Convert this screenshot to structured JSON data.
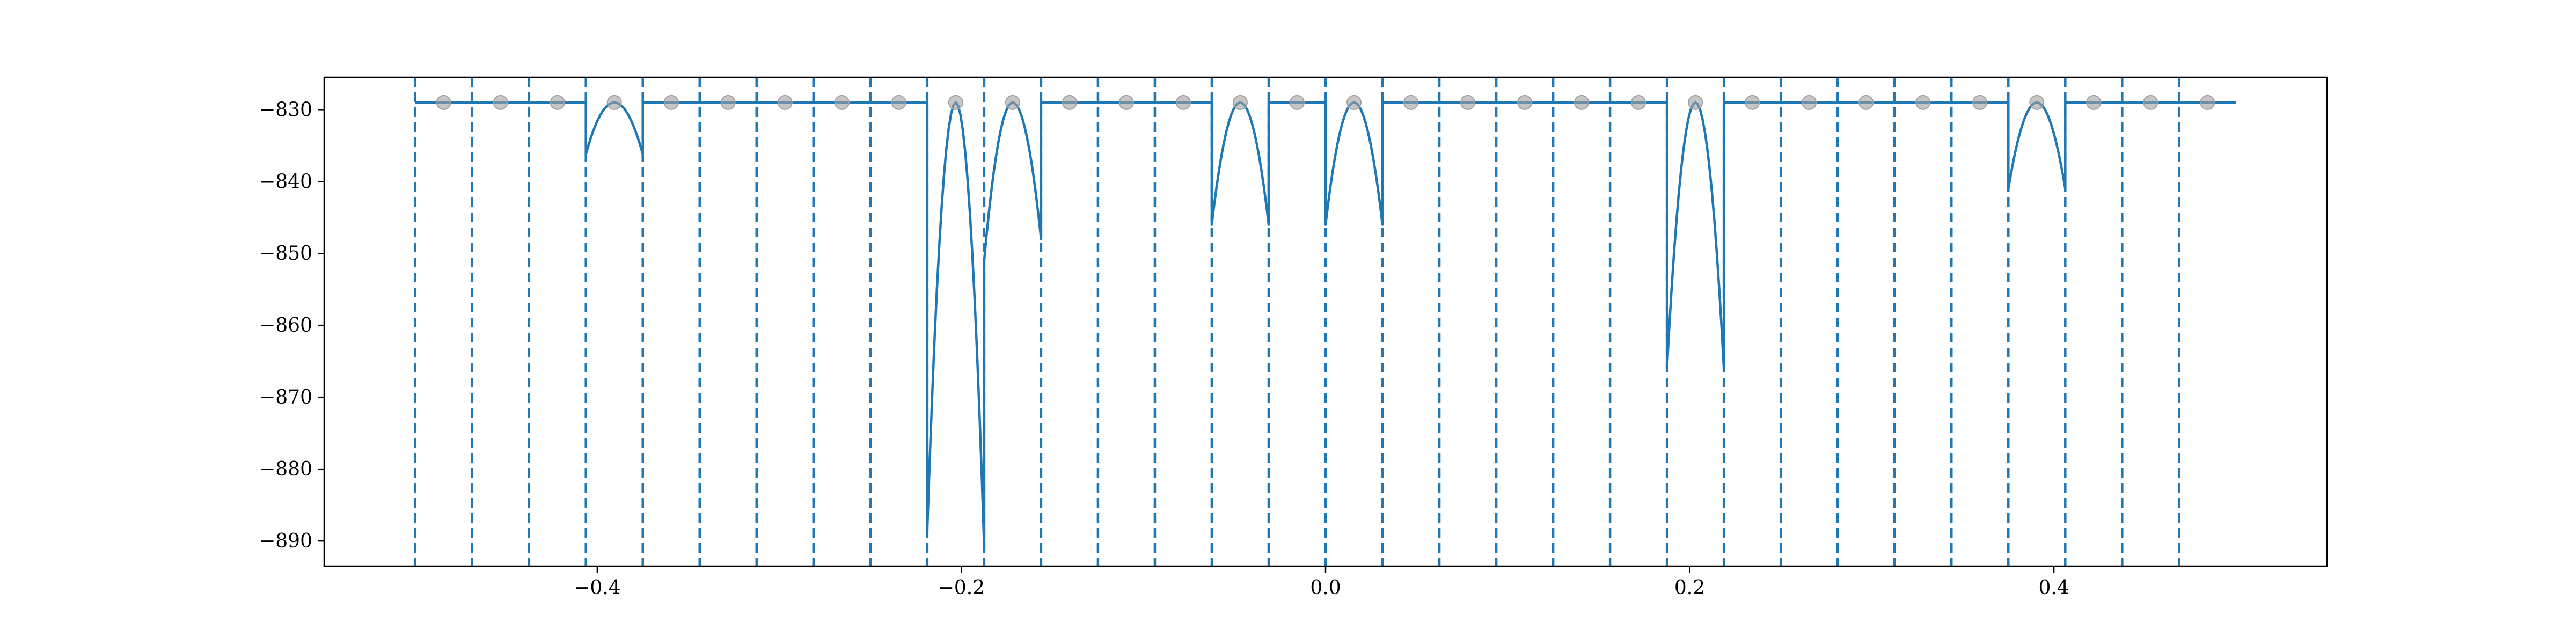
{
  "chart_data": {
    "type": "line",
    "title": "",
    "xlabel": "",
    "ylabel": "",
    "xlim": [
      -0.55,
      0.55
    ],
    "ylim": [
      -893.5,
      -825.5
    ],
    "grid": false,
    "legend": "none",
    "colors": {
      "line": "#1f77b4",
      "points": "#a0a0a0",
      "axes": "#000000"
    },
    "x_ticks": [
      -0.4,
      -0.2,
      0.0,
      0.2,
      0.4
    ],
    "x_tick_labels": [
      "−0.4",
      "−0.2",
      "0.0",
      "0.2",
      "0.4"
    ],
    "y_ticks": [
      -830,
      -840,
      -850,
      -860,
      -870,
      -880,
      -890
    ],
    "y_tick_labels": [
      "−830",
      "−840",
      "−850",
      "−860",
      "−870",
      "−880",
      "−890"
    ],
    "boundaries": [
      -0.5,
      -0.46875,
      -0.4375,
      -0.40625,
      -0.375,
      -0.34375,
      -0.3125,
      -0.28125,
      -0.25,
      -0.21875,
      -0.1875,
      -0.15625,
      -0.125,
      -0.09375,
      -0.0625,
      -0.03125,
      0.0,
      0.03125,
      0.0625,
      0.09375,
      0.125,
      0.15625,
      0.1875,
      0.21875,
      0.25,
      0.28125,
      0.3125,
      0.34375,
      0.375,
      0.40625,
      0.4375,
      0.46875
    ],
    "points": {
      "x": [
        -0.484375,
        -0.453125,
        -0.421875,
        -0.390625,
        -0.359375,
        -0.328125,
        -0.296875,
        -0.265625,
        -0.234375,
        -0.203125,
        -0.171875,
        -0.140625,
        -0.109375,
        -0.078125,
        -0.046875,
        -0.015625,
        0.015625,
        0.046875,
        0.078125,
        0.109375,
        0.140625,
        0.171875,
        0.203125,
        0.234375,
        0.265625,
        0.296875,
        0.328125,
        0.359375,
        0.390625,
        0.421875,
        0.453125,
        0.484375
      ],
      "y": -829
    },
    "segments": [
      {
        "x0": -0.5,
        "x1": -0.46875,
        "center": -0.484375,
        "edge_value": -829,
        "peak": -829
      },
      {
        "x0": -0.46875,
        "x1": -0.4375,
        "center": -0.453125,
        "edge_value": -829,
        "peak": -829
      },
      {
        "x0": -0.4375,
        "x1": -0.40625,
        "center": -0.421875,
        "edge_value": -829,
        "peak": -829
      },
      {
        "x0": -0.40625,
        "x1": -0.375,
        "center": -0.390625,
        "edge_value": -836.2,
        "peak": -829
      },
      {
        "x0": -0.375,
        "x1": -0.34375,
        "center": -0.359375,
        "edge_value": -829,
        "peak": -829
      },
      {
        "x0": -0.34375,
        "x1": -0.3125,
        "center": -0.328125,
        "edge_value": -829,
        "peak": -829
      },
      {
        "x0": -0.3125,
        "x1": -0.28125,
        "center": -0.296875,
        "edge_value": -829,
        "peak": -829
      },
      {
        "x0": -0.28125,
        "x1": -0.25,
        "center": -0.265625,
        "edge_value": -829,
        "peak": -829
      },
      {
        "x0": -0.25,
        "x1": -0.21875,
        "center": -0.234375,
        "edge_value": -829,
        "peak": -829
      },
      {
        "x0": -0.21875,
        "x1": -0.1875,
        "center": -0.203125,
        "edge_value": -888.5,
        "edge_value_right": -890.9,
        "peak": -829
      },
      {
        "x0": -0.1875,
        "x1": -0.15625,
        "center": -0.171875,
        "edge_value": -851.0,
        "edge_value_right": -848.0,
        "peak": -829
      },
      {
        "x0": -0.15625,
        "x1": -0.125,
        "center": -0.140625,
        "edge_value": -829,
        "peak": -829
      },
      {
        "x0": -0.125,
        "x1": -0.09375,
        "center": -0.109375,
        "edge_value": -829,
        "peak": -829
      },
      {
        "x0": -0.09375,
        "x1": -0.0625,
        "center": -0.078125,
        "edge_value": -829,
        "peak": -829
      },
      {
        "x0": -0.0625,
        "x1": -0.03125,
        "center": -0.046875,
        "edge_value": -846.0,
        "peak": -829
      },
      {
        "x0": -0.03125,
        "x1": 0.0,
        "center": -0.015625,
        "edge_value": -829,
        "peak": -829
      },
      {
        "x0": 0.0,
        "x1": 0.03125,
        "center": 0.015625,
        "edge_value": -846.0,
        "peak": -829
      },
      {
        "x0": 0.03125,
        "x1": 0.0625,
        "center": 0.046875,
        "edge_value": -829,
        "peak": -829
      },
      {
        "x0": 0.0625,
        "x1": 0.09375,
        "center": 0.078125,
        "edge_value": -829,
        "peak": -829
      },
      {
        "x0": 0.09375,
        "x1": 0.125,
        "center": 0.109375,
        "edge_value": -829,
        "peak": -829
      },
      {
        "x0": 0.125,
        "x1": 0.15625,
        "center": 0.140625,
        "edge_value": -829,
        "peak": -829
      },
      {
        "x0": 0.15625,
        "x1": 0.1875,
        "center": 0.171875,
        "edge_value": -829,
        "peak": -829
      },
      {
        "x0": 0.1875,
        "x1": 0.21875,
        "center": 0.203125,
        "edge_value": -866.0,
        "peak": -829
      },
      {
        "x0": 0.21875,
        "x1": 0.25,
        "center": 0.234375,
        "edge_value": -829,
        "peak": -829
      },
      {
        "x0": 0.25,
        "x1": 0.28125,
        "center": 0.265625,
        "edge_value": -829,
        "peak": -829
      },
      {
        "x0": 0.28125,
        "x1": 0.3125,
        "center": 0.296875,
        "edge_value": -829,
        "peak": -829
      },
      {
        "x0": 0.3125,
        "x1": 0.34375,
        "center": 0.328125,
        "edge_value": -829,
        "peak": -829
      },
      {
        "x0": 0.34375,
        "x1": 0.375,
        "center": 0.359375,
        "edge_value": -829,
        "peak": -829
      },
      {
        "x0": 0.375,
        "x1": 0.40625,
        "center": 0.390625,
        "edge_value": -841.0,
        "peak": -829
      },
      {
        "x0": 0.40625,
        "x1": 0.4375,
        "center": 0.421875,
        "edge_value": -829,
        "peak": -829
      },
      {
        "x0": 0.4375,
        "x1": 0.46875,
        "center": 0.453125,
        "edge_value": -829,
        "peak": -829
      },
      {
        "x0": 0.46875,
        "x1": 0.5,
        "center": 0.484375,
        "edge_value": -829,
        "peak": -829
      }
    ]
  }
}
